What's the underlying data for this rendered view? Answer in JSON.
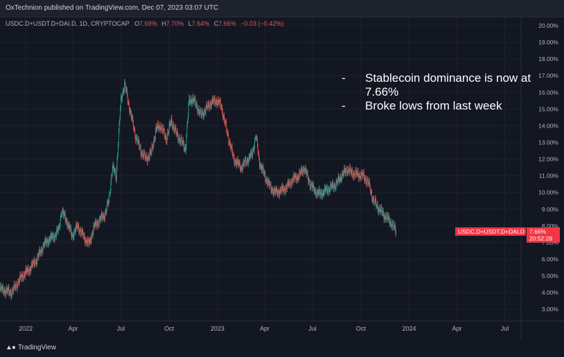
{
  "header": {
    "published_text": "OxTechnion published on TradingView.com, Dec 07, 2023 03:07 UTC"
  },
  "legend": {
    "symbol": "USDC.D+USDT.D+DAI.D, 1D, CRYPTOCAP",
    "o_label": "O",
    "o_value": "7.69%",
    "h_label": "H",
    "h_value": "7.70%",
    "l_label": "L",
    "l_value": "7.64%",
    "c_label": "C",
    "c_value": "7.66%",
    "change": "−0.03 (−0.42%)"
  },
  "annotation": {
    "lines": [
      "-",
      "Stablecoin dominance is now at",
      "7.66%",
      "-",
      "Broke lows from last week"
    ]
  },
  "price_label": {
    "symbol": "USDC.D+USDT.D+DAI.D",
    "value": "7.66%",
    "countdown": "20:52:28"
  },
  "footer": {
    "brand": "TradingView"
  },
  "colors": {
    "up": "#26a69a",
    "down": "#ef5350",
    "background": "#131722",
    "grid": "#1e222d",
    "text": "#b2b5be",
    "label_bg": "#f23645"
  },
  "chart_data": {
    "type": "candlestick",
    "y_axis_ticks": [
      "20.00%",
      "19.00%",
      "18.00%",
      "17.00%",
      "16.00%",
      "15.00%",
      "14.00%",
      "13.00%",
      "12.00%",
      "11.00%",
      "10.00%",
      "9.00%",
      "8.00%",
      "7.00%",
      "6.00%",
      "5.00%",
      "4.00%",
      "3.00%"
    ],
    "ylim": [
      2.3,
      20.5
    ],
    "x_axis_ticks": [
      "2022",
      "Apr",
      "Jul",
      "Oct",
      "2023",
      "Apr",
      "Jul",
      "Oct",
      "2024",
      "Apr",
      "Jul"
    ],
    "x_tick_dates": [
      "2022-01-01",
      "2022-04-01",
      "2022-07-01",
      "2022-10-01",
      "2023-01-01",
      "2023-04-01",
      "2023-07-01",
      "2023-10-01",
      "2024-01-01",
      "2024-04-01",
      "2024-07-01"
    ],
    "xlim": [
      "2021-11-13",
      "2024-08-01"
    ],
    "close_series": [
      [
        "2021-11-13",
        4.2
      ],
      [
        "2021-11-25",
        4.1
      ],
      [
        "2021-12-05",
        4.0
      ],
      [
        "2021-12-15",
        4.5
      ],
      [
        "2021-12-25",
        5.0
      ],
      [
        "2022-01-08",
        5.4
      ],
      [
        "2022-01-22",
        6.0
      ],
      [
        "2022-02-05",
        6.9
      ],
      [
        "2022-02-15",
        7.2
      ],
      [
        "2022-02-25",
        7.4
      ],
      [
        "2022-03-05",
        7.8
      ],
      [
        "2022-03-10",
        8.9
      ],
      [
        "2022-03-20",
        8.3
      ],
      [
        "2022-03-30",
        7.4
      ],
      [
        "2022-04-10",
        8.0
      ],
      [
        "2022-04-22",
        7.3
      ],
      [
        "2022-05-02",
        6.9
      ],
      [
        "2022-05-10",
        7.9
      ],
      [
        "2022-05-20",
        8.3
      ],
      [
        "2022-06-01",
        8.7
      ],
      [
        "2022-06-08",
        9.5
      ],
      [
        "2022-06-15",
        11.5
      ],
      [
        "2022-06-22",
        11.0
      ],
      [
        "2022-07-01",
        15.5
      ],
      [
        "2022-07-08",
        16.5
      ],
      [
        "2022-07-18",
        15.0
      ],
      [
        "2022-07-28",
        13.5
      ],
      [
        "2022-08-08",
        12.5
      ],
      [
        "2022-08-18",
        12.0
      ],
      [
        "2022-08-28",
        12.4
      ],
      [
        "2022-09-06",
        13.8
      ],
      [
        "2022-09-15",
        14.0
      ],
      [
        "2022-09-25",
        13.2
      ],
      [
        "2022-10-05",
        14.3
      ],
      [
        "2022-10-15",
        13.5
      ],
      [
        "2022-10-25",
        13.0
      ],
      [
        "2022-11-01",
        12.6
      ],
      [
        "2022-11-08",
        15.5
      ],
      [
        "2022-11-15",
        15.6
      ],
      [
        "2022-11-22",
        15.2
      ],
      [
        "2022-12-01",
        14.6
      ],
      [
        "2022-12-10",
        15.0
      ],
      [
        "2022-12-20",
        15.4
      ],
      [
        "2022-12-31",
        15.5
      ],
      [
        "2023-01-08",
        15.2
      ],
      [
        "2023-01-20",
        13.5
      ],
      [
        "2023-02-01",
        12.0
      ],
      [
        "2023-02-15",
        11.5
      ],
      [
        "2023-02-28",
        12.0
      ],
      [
        "2023-03-08",
        12.3
      ],
      [
        "2023-03-15",
        13.4
      ],
      [
        "2023-03-22",
        11.8
      ],
      [
        "2023-04-01",
        11.0
      ],
      [
        "2023-04-10",
        10.4
      ],
      [
        "2023-04-20",
        10.0
      ],
      [
        "2023-05-01",
        10.1
      ],
      [
        "2023-05-12",
        10.3
      ],
      [
        "2023-05-25",
        10.8
      ],
      [
        "2023-06-05",
        11.0
      ],
      [
        "2023-06-15",
        11.5
      ],
      [
        "2023-06-25",
        10.6
      ],
      [
        "2023-07-05",
        10.1
      ],
      [
        "2023-07-15",
        9.9
      ],
      [
        "2023-07-25",
        10.1
      ],
      [
        "2023-08-05",
        10.3
      ],
      [
        "2023-08-15",
        10.5
      ],
      [
        "2023-08-25",
        11.0
      ],
      [
        "2023-09-05",
        11.4
      ],
      [
        "2023-09-12",
        11.2
      ],
      [
        "2023-09-22",
        11.1
      ],
      [
        "2023-10-05",
        11.0
      ],
      [
        "2023-10-15",
        10.6
      ],
      [
        "2023-10-25",
        9.5
      ],
      [
        "2023-11-05",
        9.0
      ],
      [
        "2023-11-15",
        8.6
      ],
      [
        "2023-11-25",
        8.3
      ],
      [
        "2023-12-01",
        8.0
      ],
      [
        "2023-12-07",
        7.66
      ]
    ]
  }
}
